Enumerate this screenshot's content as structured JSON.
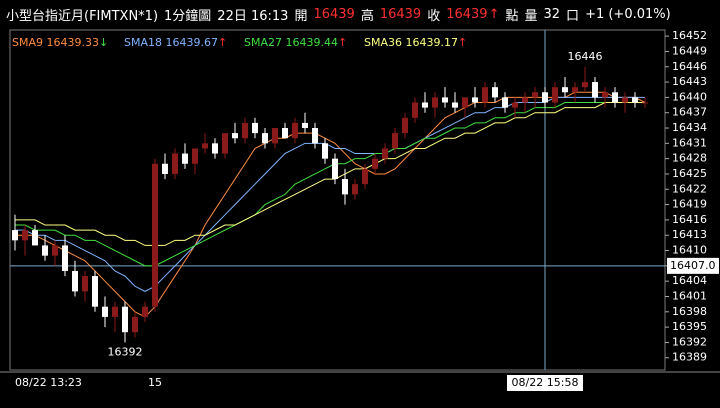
{
  "header": {
    "instrument": "小型台指近月(FIMTXN*1)",
    "interval": "1分鐘圖",
    "time": "22日 16:13",
    "open_label": "開",
    "open": 16439,
    "high_label": "高",
    "high": 16439,
    "close_label": "收",
    "close": 16439,
    "change_arrow": "↑",
    "points_label": "點",
    "volume_label": "量",
    "volume": 32,
    "volume_unit": "口",
    "change": "+1 (+0.01%)"
  },
  "chart_data": {
    "type": "candlestick",
    "up_color": "#8b1a1a",
    "down_color": "#ffffff",
    "ylim": [
      16386.6,
      16453.2
    ],
    "yticks": [
      16389,
      16392,
      16395,
      16398,
      16401,
      16404,
      16407,
      16410,
      16413,
      16416,
      16419,
      16422,
      16425,
      16428,
      16431,
      16434,
      16437,
      16440,
      16443,
      16446,
      16449,
      16452
    ],
    "categories": [
      "08/22 13:23",
      null,
      null,
      null,
      null,
      null,
      null,
      null,
      null,
      null,
      null,
      null,
      null,
      null,
      "15",
      null,
      null,
      null,
      null,
      null,
      null,
      null,
      null,
      null,
      null,
      null,
      null,
      null,
      null,
      null,
      null,
      null,
      null,
      null,
      null,
      null,
      null,
      null,
      null,
      null,
      null,
      null,
      null,
      null,
      null,
      null,
      null,
      null,
      null,
      null,
      null,
      null,
      null,
      "08/22 15:58",
      null,
      null,
      null,
      null,
      null,
      null,
      null,
      null,
      null,
      null
    ],
    "ohlc": [
      [
        16414,
        16417,
        16410,
        16412
      ],
      [
        16412,
        16415,
        16409,
        16414
      ],
      [
        16414,
        16415,
        16411,
        16411
      ],
      [
        16411,
        16413,
        16408,
        16409
      ],
      [
        16409,
        16412,
        16407,
        16411
      ],
      [
        16411,
        16413,
        16405,
        16406
      ],
      [
        16406,
        16408,
        16401,
        16402
      ],
      [
        16402,
        16406,
        16400,
        16405
      ],
      [
        16405,
        16406,
        16398,
        16399
      ],
      [
        16399,
        16401,
        16395,
        16397
      ],
      [
        16397,
        16400,
        16394,
        16399
      ],
      [
        16399,
        16400,
        16392,
        16394
      ],
      [
        16394,
        16398,
        16393,
        16397
      ],
      [
        16397,
        16400,
        16396,
        16399
      ],
      [
        16399,
        16428,
        16398,
        16427
      ],
      [
        16427,
        16429,
        16424,
        16425
      ],
      [
        16425,
        16430,
        16424,
        16429
      ],
      [
        16429,
        16431,
        16426,
        16427
      ],
      [
        16427,
        16430,
        16425,
        16430
      ],
      [
        16430,
        16433,
        16429,
        16431
      ],
      [
        16431,
        16432,
        16428,
        16429
      ],
      [
        16429,
        16433,
        16428,
        16433
      ],
      [
        16433,
        16435,
        16431,
        16432
      ],
      [
        16432,
        16436,
        16431,
        16435
      ],
      [
        16435,
        16436,
        16432,
        16433
      ],
      [
        16433,
        16434,
        16430,
        16431
      ],
      [
        16431,
        16434,
        16430,
        16434
      ],
      [
        16434,
        16435,
        16432,
        16432
      ],
      [
        16432,
        16436,
        16431,
        16435
      ],
      [
        16435,
        16437,
        16433,
        16434
      ],
      [
        16434,
        16435,
        16430,
        16431
      ],
      [
        16431,
        16432,
        16427,
        16428
      ],
      [
        16428,
        16429,
        16423,
        16424
      ],
      [
        16424,
        16426,
        16419,
        16421
      ],
      [
        16421,
        16424,
        16420,
        16423
      ],
      [
        16423,
        16427,
        16422,
        16426
      ],
      [
        16426,
        16429,
        16425,
        16428
      ],
      [
        16428,
        16431,
        16427,
        16430
      ],
      [
        16430,
        16434,
        16429,
        16433
      ],
      [
        16433,
        16437,
        16432,
        16436
      ],
      [
        16436,
        16440,
        16435,
        16439
      ],
      [
        16439,
        16441,
        16437,
        16438
      ],
      [
        16438,
        16441,
        16436,
        16440
      ],
      [
        16440,
        16442,
        16438,
        16439
      ],
      [
        16439,
        16441,
        16437,
        16438
      ],
      [
        16438,
        16440,
        16436,
        16440
      ],
      [
        16440,
        16442,
        16438,
        16439
      ],
      [
        16439,
        16443,
        16438,
        16442
      ],
      [
        16442,
        16443,
        16439,
        16440
      ],
      [
        16440,
        16441,
        16437,
        16438
      ],
      [
        16438,
        16440,
        16436,
        16439
      ],
      [
        16439,
        16441,
        16437,
        16440
      ],
      [
        16440,
        16442,
        16438,
        16441
      ],
      [
        16441,
        16442,
        16438,
        16439
      ],
      [
        16439,
        16443,
        16438,
        16442
      ],
      [
        16442,
        16444,
        16440,
        16441
      ],
      [
        16441,
        16443,
        16439,
        16442
      ],
      [
        16442,
        16446,
        16441,
        16443
      ],
      [
        16443,
        16444,
        16439,
        16440
      ],
      [
        16440,
        16442,
        16438,
        16441
      ],
      [
        16441,
        16442,
        16438,
        16439
      ],
      [
        16439,
        16441,
        16437,
        16440
      ],
      [
        16440,
        16441,
        16438,
        16439
      ],
      [
        16439,
        16440,
        16438,
        16439
      ]
    ],
    "lines": [
      {
        "name": "SMA9",
        "color": "#ff8c40",
        "last_value": 16439.33,
        "trend_arrow": "↓",
        "arrow_color": "#40e040",
        "values": [
          16413,
          16413,
          16413,
          16412,
          16411,
          16410,
          16409,
          16408,
          16406,
          16404,
          16402,
          16400,
          16398,
          16397,
          16399,
          16402,
          16405,
          16408,
          16411,
          16415,
          16418,
          16421,
          16424,
          16427,
          16430,
          16431,
          16432,
          16432,
          16433,
          16433,
          16433,
          16432,
          16431,
          16429,
          16427,
          16426,
          16425,
          16425,
          16426,
          16428,
          16430,
          16432,
          16434,
          16436,
          16437,
          16438,
          16439,
          16439,
          16439,
          16440,
          16440,
          16440,
          16440,
          16440,
          16440,
          16440,
          16441,
          16441,
          16441,
          16441,
          16440,
          16440,
          16440,
          16439
        ]
      },
      {
        "name": "SMA18",
        "color": "#80b4ff",
        "last_value": 16439.67,
        "trend_arrow": "↑",
        "arrow_color": "#ff3030",
        "values": [
          16414,
          16414,
          16413,
          16413,
          16412,
          16412,
          16411,
          16410,
          16409,
          16408,
          16406,
          16405,
          16403,
          16402,
          16403,
          16405,
          16407,
          16409,
          16411,
          16413,
          16415,
          16417,
          16419,
          16421,
          16423,
          16425,
          16427,
          16429,
          16430,
          16431,
          16431,
          16431,
          16430,
          16430,
          16429,
          16429,
          16429,
          16429,
          16430,
          16430,
          16431,
          16432,
          16433,
          16434,
          16435,
          16436,
          16437,
          16437,
          16438,
          16438,
          16439,
          16439,
          16439,
          16439,
          16440,
          16440,
          16440,
          16440,
          16440,
          16440,
          16440,
          16440,
          16440,
          16440
        ]
      },
      {
        "name": "SMA27",
        "color": "#40e040",
        "last_value": 16439.44,
        "trend_arrow": "↑",
        "arrow_color": "#ff3030",
        "values": [
          16415,
          16415,
          16414,
          16414,
          16414,
          16413,
          16413,
          16412,
          16412,
          16411,
          16410,
          16409,
          16408,
          16407,
          16407,
          16408,
          16409,
          16410,
          16411,
          16412,
          16413,
          16414,
          16415,
          16416,
          16417,
          16419,
          16420,
          16421,
          16423,
          16424,
          16425,
          16426,
          16427,
          16427,
          16428,
          16428,
          16429,
          16429,
          16430,
          16430,
          16431,
          16432,
          16432,
          16433,
          16434,
          16434,
          16435,
          16435,
          16436,
          16436,
          16437,
          16437,
          16438,
          16438,
          16438,
          16439,
          16439,
          16439,
          16439,
          16439,
          16439,
          16439,
          16439,
          16439
        ]
      },
      {
        "name": "SMA36",
        "color": "#ffff80",
        "last_value": 16439.17,
        "trend_arrow": "↑",
        "arrow_color": "#ff3030",
        "values": [
          16416,
          16416,
          16416,
          16415,
          16415,
          16415,
          16414,
          16414,
          16414,
          16413,
          16413,
          16412,
          16412,
          16411,
          16411,
          16411,
          16412,
          16412,
          16413,
          16413,
          16414,
          16415,
          16415,
          16416,
          16417,
          16418,
          16419,
          16420,
          16421,
          16422,
          16423,
          16424,
          16424,
          16425,
          16426,
          16426,
          16427,
          16428,
          16428,
          16429,
          16430,
          16430,
          16431,
          16432,
          16432,
          16433,
          16433,
          16434,
          16435,
          16435,
          16436,
          16436,
          16437,
          16437,
          16437,
          16438,
          16438,
          16438,
          16438,
          16439,
          16439,
          16439,
          16439,
          16439
        ]
      }
    ],
    "annotations": [
      {
        "value": 16446,
        "label": "16446"
      },
      {
        "value": 16392,
        "label": "16392"
      }
    ],
    "crosshair_y": {
      "value": 16407.0,
      "label": "16407.0"
    },
    "crosshair_category": 53
  }
}
